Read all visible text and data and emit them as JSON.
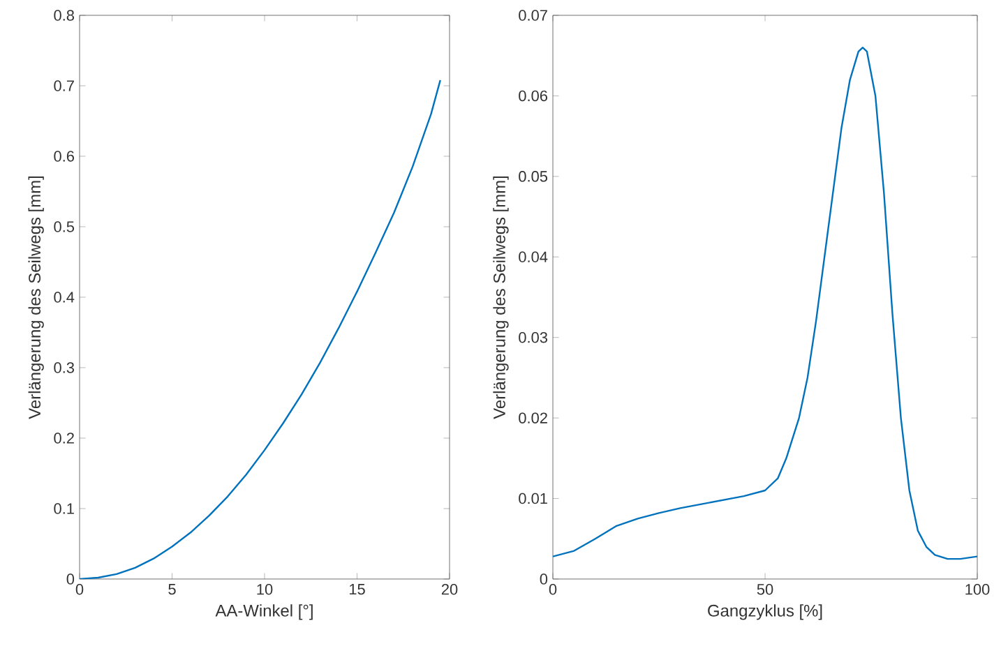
{
  "chart_data": [
    {
      "type": "line",
      "xlabel": "AA-Winkel [°]",
      "ylabel": "Verlängerung des Seilwegs [mm]",
      "xlim": [
        0,
        20
      ],
      "ylim": [
        0,
        0.8
      ],
      "xticks": [
        0,
        5,
        10,
        15,
        20
      ],
      "yticks": [
        0,
        0.1,
        0.2,
        0.3,
        0.4,
        0.5,
        0.6,
        0.7,
        0.8
      ],
      "series": [
        {
          "color": "#0072bd",
          "x": [
            0,
            1,
            2,
            3,
            4,
            5,
            6,
            7,
            8,
            9,
            10,
            11,
            12,
            13,
            14,
            15,
            16,
            17,
            18,
            19,
            19.5
          ],
          "values": [
            0,
            0.002,
            0.007,
            0.016,
            0.029,
            0.046,
            0.066,
            0.09,
            0.117,
            0.148,
            0.183,
            0.221,
            0.262,
            0.307,
            0.356,
            0.408,
            0.463,
            0.52,
            0.585,
            0.66,
            0.708
          ]
        }
      ]
    },
    {
      "type": "line",
      "xlabel": "Gangzyklus [%]",
      "ylabel": "Verlängerung des Seilwegs [mm]",
      "xlim": [
        0,
        100
      ],
      "ylim": [
        0,
        0.07
      ],
      "xticks": [
        0,
        50,
        100
      ],
      "yticks": [
        0,
        0.01,
        0.02,
        0.03,
        0.04,
        0.05,
        0.06,
        0.07
      ],
      "series": [
        {
          "color": "#0072bd",
          "x": [
            0,
            5,
            10,
            15,
            20,
            25,
            30,
            35,
            40,
            45,
            50,
            53,
            55,
            58,
            60,
            62,
            64,
            66,
            68,
            70,
            72,
            73,
            74,
            76,
            78,
            80,
            82,
            84,
            86,
            88,
            90,
            93,
            96,
            100
          ],
          "values": [
            0.0028,
            0.0035,
            0.005,
            0.0066,
            0.0075,
            0.0082,
            0.0088,
            0.0093,
            0.0098,
            0.0103,
            0.011,
            0.0125,
            0.015,
            0.02,
            0.025,
            0.032,
            0.04,
            0.048,
            0.056,
            0.062,
            0.0655,
            0.066,
            0.0655,
            0.06,
            0.048,
            0.033,
            0.02,
            0.011,
            0.006,
            0.004,
            0.003,
            0.0025,
            0.0025,
            0.0028
          ]
        }
      ]
    }
  ]
}
